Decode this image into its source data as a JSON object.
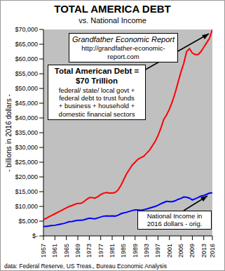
{
  "chart_data": {
    "type": "line",
    "title": "TOTAL AMERICA DEBT",
    "subtitle": "vs. National Income",
    "y_label": "- billions in 2016 dollars -",
    "source": "data: Federal Reserve, US Treas., Bureau Economic Analysis",
    "annotations": [
      {
        "lines": [
          "Grandfather Economic Report",
          "http://grandfather-economic-report.com"
        ]
      },
      {
        "lines": [
          "Total American Debt =",
          "$70 Trillion",
          "federal/ state/ local govt +",
          "federal debt to trust funds",
          "+ business + household +",
          "domestic financial sectors"
        ]
      },
      {
        "lines": [
          "National Income in",
          "2016 dollars - orig."
        ]
      }
    ],
    "x": [
      1957,
      1958,
      1959,
      1960,
      1961,
      1962,
      1963,
      1964,
      1965,
      1966,
      1967,
      1968,
      1969,
      1970,
      1971,
      1972,
      1973,
      1974,
      1975,
      1976,
      1977,
      1978,
      1979,
      1980,
      1981,
      1982,
      1983,
      1984,
      1985,
      1986,
      1987,
      1988,
      1989,
      1990,
      1991,
      1992,
      1993,
      1994,
      1995,
      1996,
      1997,
      1998,
      1999,
      2000,
      2001,
      2002,
      2003,
      2004,
      2005,
      2006,
      2007,
      2008,
      2009,
      2010,
      2011,
      2012,
      2013,
      2014,
      2015,
      2016
    ],
    "series": [
      {
        "name": "Total American Debt",
        "color": "#ff0000",
        "values": [
          5500,
          6000,
          6500,
          7000,
          7500,
          8000,
          8500,
          9000,
          9500,
          10000,
          10300,
          10700,
          11000,
          11000,
          11500,
          12300,
          13000,
          13000,
          12800,
          13300,
          14000,
          14500,
          14700,
          14500,
          14500,
          14700,
          15500,
          17000,
          19000,
          21000,
          22500,
          24000,
          25000,
          26000,
          26500,
          27000,
          28000,
          29000,
          30500,
          32000,
          34000,
          36500,
          39500,
          41000,
          43000,
          45500,
          48500,
          52000,
          55500,
          58500,
          62500,
          63500,
          62000,
          61500,
          61500,
          62500,
          64000,
          65500,
          67000,
          70000
        ]
      },
      {
        "name": "National Income",
        "color": "#0000ff",
        "values": [
          3200,
          3200,
          3400,
          3500,
          3600,
          3800,
          4000,
          4200,
          4500,
          4800,
          4900,
          5100,
          5300,
          5300,
          5400,
          5700,
          6000,
          5900,
          5800,
          6100,
          6400,
          6700,
          6800,
          6700,
          6800,
          6700,
          7000,
          7500,
          7800,
          8000,
          8300,
          8600,
          8800,
          8800,
          8700,
          8900,
          9100,
          9400,
          9700,
          10000,
          10400,
          10900,
          11300,
          11700,
          11600,
          11600,
          11900,
          12400,
          12700,
          13200,
          13100,
          12800,
          12200,
          12600,
          13000,
          13500,
          13700,
          14100,
          14500,
          14600
        ]
      }
    ],
    "xlim": [
      1957,
      2016
    ],
    "xticks": [
      1957,
      1961,
      1965,
      1969,
      1973,
      1977,
      1981,
      1985,
      1989,
      1993,
      1997,
      2001,
      2005,
      2009,
      2013,
      2016
    ],
    "ylim": [
      0,
      70000
    ],
    "yticks": [
      {
        "value": 0,
        "label": "$-"
      },
      {
        "value": 5000,
        "label": "$5,000"
      },
      {
        "value": 10000,
        "label": "$10,000"
      },
      {
        "value": 15000,
        "label": "$15,000"
      },
      {
        "value": 20000,
        "label": "$20,000"
      },
      {
        "value": 25000,
        "label": "$25,000"
      },
      {
        "value": 30000,
        "label": "$30,000"
      },
      {
        "value": 35000,
        "label": "$35,000"
      },
      {
        "value": 40000,
        "label": "$40,000"
      },
      {
        "value": 45000,
        "label": "$45,000"
      },
      {
        "value": 50000,
        "label": "$50,000"
      },
      {
        "value": 55000,
        "label": "$55,000"
      },
      {
        "value": 60000,
        "label": "$60,000"
      },
      {
        "value": 65000,
        "label": "$65,000"
      },
      {
        "value": 70000,
        "label": "$70,000"
      }
    ],
    "grid": false
  }
}
